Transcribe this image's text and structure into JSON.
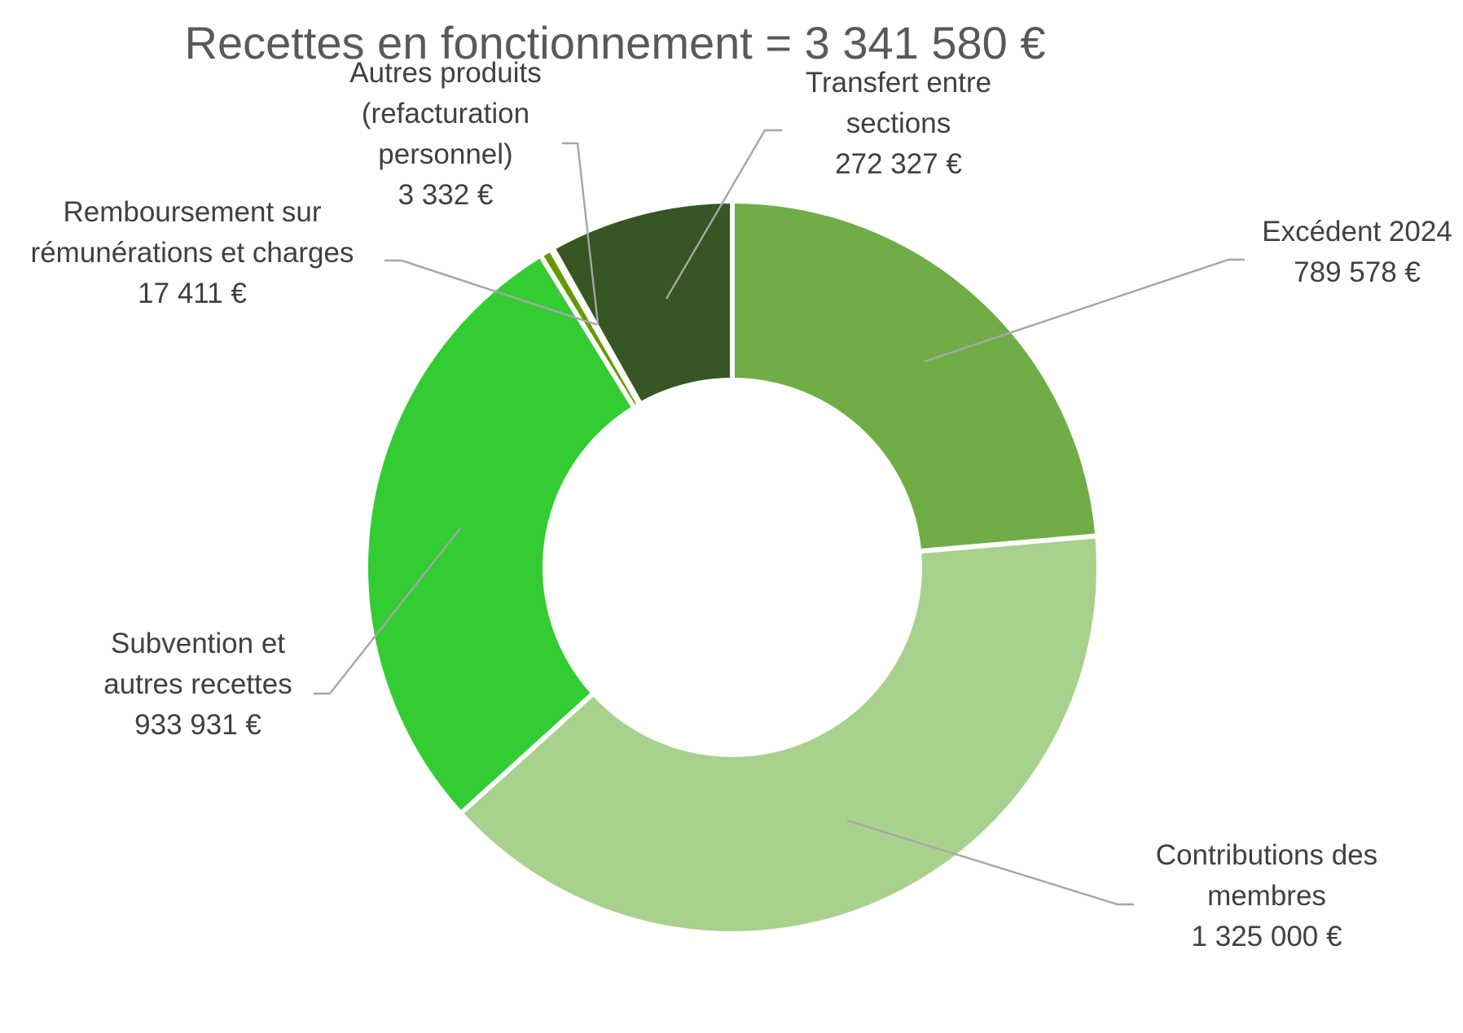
{
  "chart_data": {
    "type": "donut",
    "title": "Recettes en fonctionnement = 3 341 580 €",
    "slices": [
      {
        "key": "excedent",
        "label_lines": [
          "Excédent 2024",
          "789 578 €"
        ],
        "value": 789578,
        "color": "#70ad47"
      },
      {
        "key": "contributions",
        "label_lines": [
          "Contributions des",
          "membres",
          "1 325 000 €"
        ],
        "value": 1325000,
        "color": "#a9d18e"
      },
      {
        "key": "subvention",
        "label_lines": [
          "Subvention et",
          "autres recettes",
          "933 931 €"
        ],
        "value": 933931,
        "color": "#33cc33"
      },
      {
        "key": "remboursement",
        "label_lines": [
          "Remboursement sur",
          "rémunérations et charges",
          "17 411 €"
        ],
        "value": 17411,
        "color": "#669900"
      },
      {
        "key": "autres-produits",
        "label_lines": [
          "Autres produits",
          "(refacturation",
          "personnel)",
          "3 332 €"
        ],
        "value": 3332,
        "color": "#548235"
      },
      {
        "key": "transfert",
        "label_lines": [
          "Transfert entre",
          "sections",
          "272 327 €"
        ],
        "value": 272327,
        "color": "#375623"
      }
    ],
    "legend": "none"
  }
}
